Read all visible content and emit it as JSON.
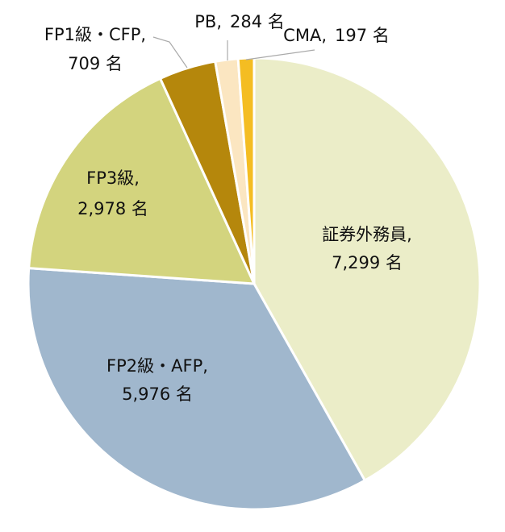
{
  "chart_data": {
    "type": "pie",
    "categories": [
      "証券外務員,",
      "FP2級・AFP,",
      "FP3級,",
      "FP1級・CFP,",
      "PB,",
      "CMA,"
    ],
    "values": [
      7299,
      5976,
      2978,
      709,
      284,
      197
    ],
    "value_labels": [
      "7,299 名",
      "5,976 名",
      "2,978 名",
      "709 名",
      "284 名",
      "197 名"
    ],
    "colors": [
      "#ebedc8",
      "#a0b7cd",
      "#d3d47e",
      "#b5870c",
      "#fbe6c1",
      "#f4bd22"
    ]
  }
}
